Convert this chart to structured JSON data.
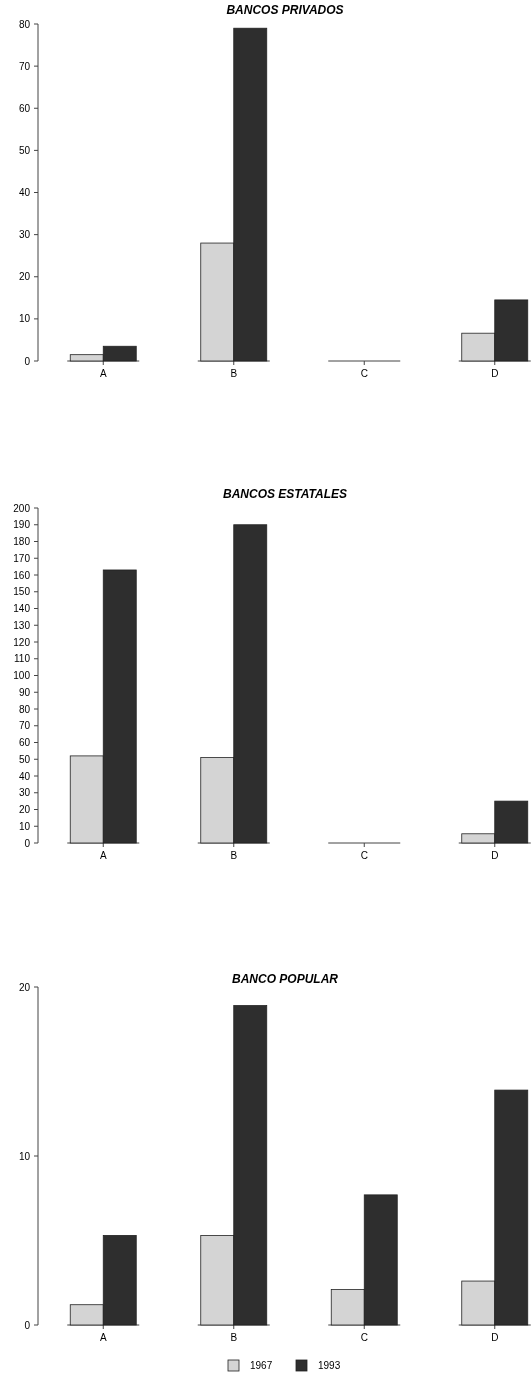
{
  "chart_data": [
    {
      "type": "bar",
      "title": "BANCOS PRIVADOS",
      "categories": [
        "A",
        "B",
        "C",
        "D"
      ],
      "series": [
        {
          "color": "#d4d4d4",
          "values": [
            1.5,
            28,
            0,
            6.6
          ]
        },
        {
          "color": "#2e2e2e",
          "values": [
            3.5,
            79,
            0,
            14.5
          ]
        }
      ],
      "ylim": [
        0,
        80
      ],
      "yticks": [
        0,
        10,
        20,
        30,
        40,
        50,
        60,
        70,
        80
      ],
      "legend": false
    },
    {
      "type": "bar",
      "title": "BANCOS ESTATALES",
      "categories": [
        "A",
        "B",
        "C",
        "D"
      ],
      "series": [
        {
          "color": "#d4d4d4",
          "values": [
            52,
            51,
            0,
            5.5
          ]
        },
        {
          "color": "#2e2e2e",
          "values": [
            163,
            190,
            0,
            25
          ]
        }
      ],
      "ylim": [
        0,
        200
      ],
      "yticks": [
        0,
        10,
        20,
        30,
        40,
        50,
        60,
        70,
        80,
        90,
        100,
        110,
        120,
        130,
        140,
        150,
        160,
        170,
        180,
        190,
        200
      ],
      "legend": false
    },
    {
      "type": "bar",
      "title": "BANCO POPULAR",
      "categories": [
        "A",
        "B",
        "C",
        "D"
      ],
      "series": [
        {
          "name": "1967",
          "color": "#d4d4d4",
          "values": [
            1.2,
            5.3,
            2.1,
            2.6
          ]
        },
        {
          "name": "1993",
          "color": "#2e2e2e",
          "values": [
            5.3,
            18.9,
            7.7,
            13.9
          ]
        }
      ],
      "ylim": [
        0,
        20
      ],
      "yticks": [
        0,
        10,
        20
      ],
      "legend": "bottom"
    }
  ]
}
